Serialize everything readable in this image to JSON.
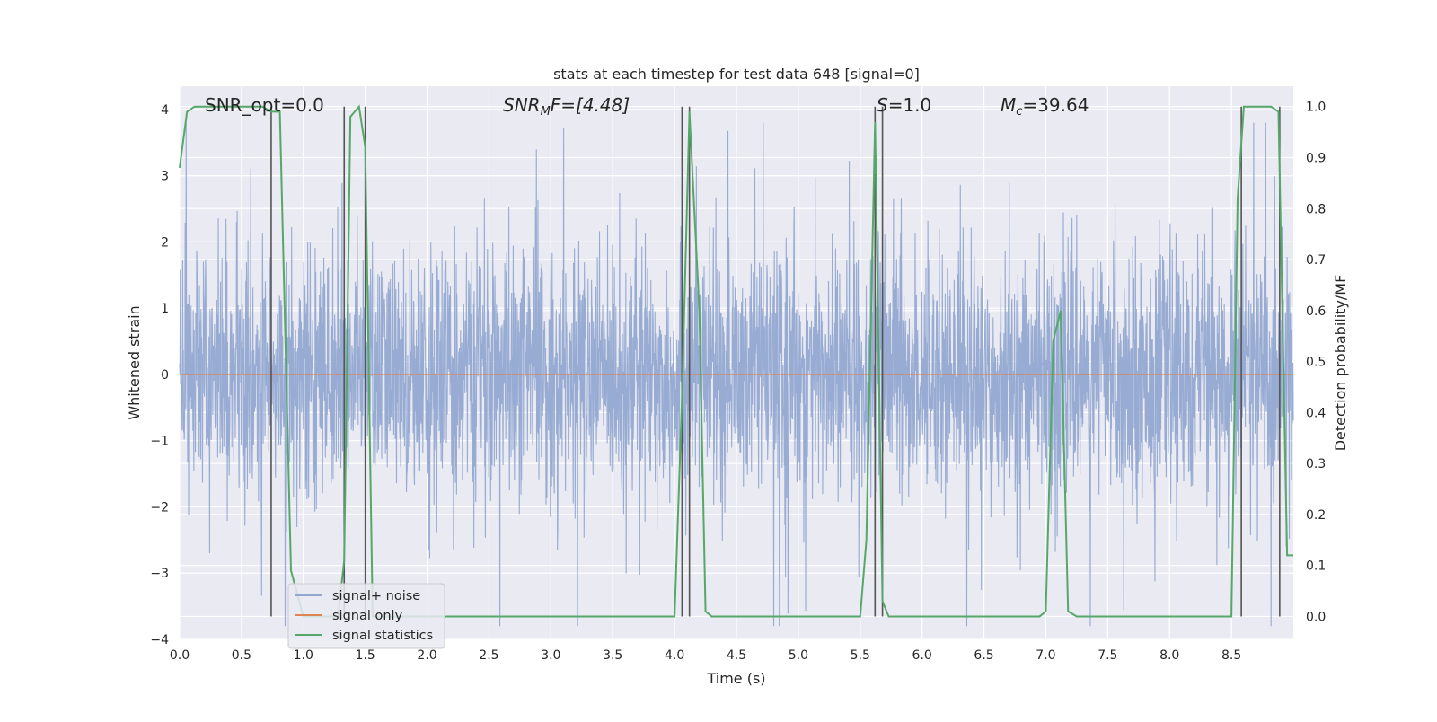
{
  "chart_data": {
    "type": "line",
    "title": "stats at each timestep for test data 648 [signal=0]",
    "xlabel": "Time (s)",
    "ylabel_left": "Whitened strain",
    "ylabel_right": "Detection probability/MF",
    "xlim": [
      0.0,
      9.0
    ],
    "ylim_left": [
      -4.0,
      4.35
    ],
    "ylim_right": [
      -0.045,
      1.04
    ],
    "xticks": [
      "0.0",
      "0.5",
      "1.0",
      "1.5",
      "2.0",
      "2.5",
      "3.0",
      "3.5",
      "4.0",
      "4.5",
      "5.0",
      "5.5",
      "6.0",
      "6.5",
      "7.0",
      "7.5",
      "8.0",
      "8.5"
    ],
    "yticks_left": [
      "4",
      "3",
      "2",
      "1",
      "0",
      "−1",
      "−2",
      "−3",
      "−4"
    ],
    "yticks_right": [
      "1.0",
      "0.9",
      "0.8",
      "0.7",
      "0.6",
      "0.5",
      "0.4",
      "0.3",
      "0.2",
      "0.1",
      "0.0"
    ],
    "grid": true,
    "legend_position": "lower-left",
    "annotations": {
      "snr_opt": "SNR_opt=0.0",
      "snr_mf_prefix": "SNR",
      "snr_mf_sub": "M",
      "snr_mf_suffix": "F=[4.48]",
      "s_label": "S",
      "s_value": "=1.0",
      "mc_label": "M",
      "mc_sub": "c",
      "mc_value": "=39.64"
    },
    "series": [
      {
        "name": "signal+ noise",
        "color": "#92a8d1",
        "description_only": "whitened noise, amplitude mostly within ±2.5, peaks up to about ±3.8"
      },
      {
        "name": "signal only",
        "color": "#dd8452",
        "values_constant": 0.0
      },
      {
        "name": "signal statistics",
        "color": "#55a868",
        "x": [
          0.0,
          0.06,
          0.12,
          0.2,
          0.3,
          0.4,
          0.5,
          0.6,
          0.67,
          0.74,
          0.81,
          0.9,
          1.0,
          1.1,
          1.2,
          1.28,
          1.33,
          1.38,
          1.45,
          1.5,
          1.56,
          1.62,
          1.7,
          2.0,
          2.5,
          3.0,
          3.5,
          3.8,
          4.0,
          4.06,
          4.12,
          4.2,
          4.25,
          4.3,
          4.5,
          5.0,
          5.5,
          5.55,
          5.62,
          5.68,
          5.73,
          5.8,
          6.0,
          6.5,
          6.95,
          7.0,
          7.06,
          7.12,
          7.18,
          7.25,
          7.5,
          8.0,
          8.5,
          8.55,
          8.6,
          8.65,
          8.75,
          8.82,
          8.88,
          8.95,
          9.0
        ],
        "values": [
          0.88,
          0.99,
          1.0,
          1.0,
          1.0,
          1.0,
          1.0,
          1.0,
          1.0,
          0.99,
          0.99,
          0.09,
          0.0,
          0.0,
          0.0,
          0.0,
          0.11,
          0.98,
          1.0,
          0.92,
          0.0,
          0.0,
          0.0,
          0.0,
          0.0,
          0.0,
          0.0,
          0.0,
          0.0,
          0.43,
          0.99,
          0.6,
          0.01,
          0.0,
          0.0,
          0.0,
          0.0,
          0.15,
          0.97,
          0.03,
          0.0,
          0.0,
          0.0,
          0.0,
          0.0,
          0.01,
          0.54,
          0.6,
          0.01,
          0.0,
          0.0,
          0.0,
          0.0,
          0.82,
          1.0,
          1.0,
          1.0,
          1.0,
          0.99,
          0.12,
          0.12
        ]
      }
    ],
    "vertical_markers_x": [
      0.74,
      1.33,
      1.5,
      4.06,
      4.12,
      5.62,
      5.68,
      8.58,
      8.89
    ]
  }
}
